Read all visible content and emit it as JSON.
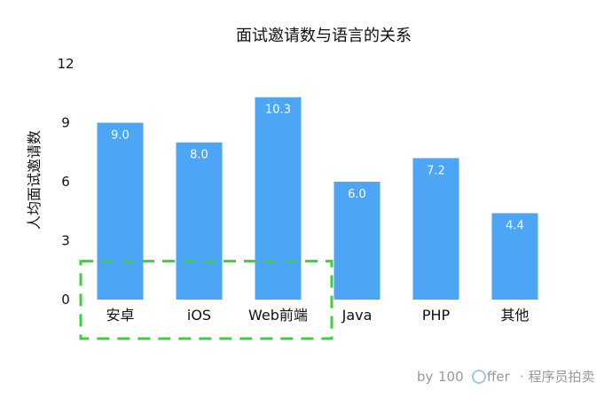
{
  "chart_data": {
    "type": "bar",
    "title": "面试邀请数与语言的关系",
    "ylabel": "人均面试邀请数",
    "xlabel": "",
    "ylim": [
      0,
      12
    ],
    "yticks": [
      0,
      3,
      6,
      9,
      12
    ],
    "grid": false,
    "legend": "none",
    "categories": [
      "安卓",
      "iOS",
      "Web前端",
      "Java",
      "PHP",
      "其他"
    ],
    "values": [
      9.0,
      8.0,
      10.3,
      6.0,
      7.2,
      4.4
    ],
    "value_labels": [
      "9.0",
      "8.0",
      "10.3",
      "6.0",
      "7.2",
      "4.4"
    ],
    "colors": {
      "bar": "#4da6f5",
      "highlight_box": "#3ecf3e"
    },
    "highlight": {
      "label": "",
      "categories": [
        "安卓",
        "iOS",
        "Web前端"
      ],
      "y_top": 2.0,
      "style": "dashed-box"
    }
  },
  "watermark": {
    "prefix": "by",
    "brand_left": "100",
    "brand_right": "ffer",
    "suffix": "· 程序员拍卖"
  }
}
